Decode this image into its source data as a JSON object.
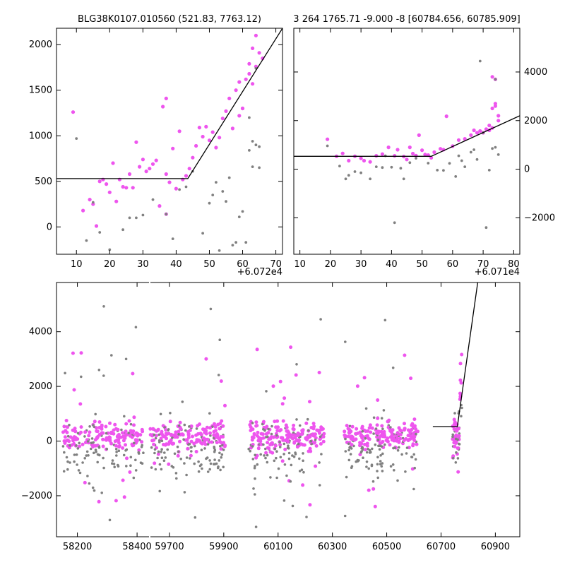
{
  "colors": {
    "magenta": "#ee55ee",
    "gray": "#808080",
    "line": "#000000"
  },
  "chart_data": [
    {
      "id": "top-left",
      "type": "scatter",
      "title": "BLG38K0107.010560 (521.83, 7763.12)",
      "offset_label": "+6.072e4",
      "xlim": [
        4,
        72
      ],
      "ylim": [
        -300,
        2180
      ],
      "xticks": [
        10,
        20,
        30,
        40,
        50,
        60,
        70
      ],
      "yticks": [
        0,
        500,
        1000,
        1500,
        2000
      ],
      "ytick_side": "left",
      "fit_line": [
        [
          4,
          530
        ],
        [
          43.5,
          530
        ],
        [
          72,
          2180
        ]
      ],
      "series": [
        {
          "name": "magenta",
          "color": "#ee55ee",
          "points": [
            [
              9,
              1260
            ],
            [
              12,
              180
            ],
            [
              14,
              300
            ],
            [
              15,
              250
            ],
            [
              16,
              10
            ],
            [
              17,
              500
            ],
            [
              18,
              520
            ],
            [
              19,
              470
            ],
            [
              20,
              380
            ],
            [
              21,
              700
            ],
            [
              22,
              280
            ],
            [
              23,
              520
            ],
            [
              24,
              440
            ],
            [
              25,
              430
            ],
            [
              26,
              580
            ],
            [
              27,
              430
            ],
            [
              28,
              930
            ],
            [
              29,
              660
            ],
            [
              30,
              740
            ],
            [
              31,
              610
            ],
            [
              32,
              640
            ],
            [
              33,
              690
            ],
            [
              34,
              730
            ],
            [
              35,
              230
            ],
            [
              36,
              1320
            ],
            [
              37,
              1410
            ],
            [
              37,
              140
            ],
            [
              37,
              580
            ],
            [
              38,
              490
            ],
            [
              39,
              860
            ],
            [
              40,
              420
            ],
            [
              41,
              1050
            ],
            [
              42,
              520
            ],
            [
              43,
              560
            ],
            [
              44,
              640
            ],
            [
              45,
              760
            ],
            [
              46,
              890
            ],
            [
              47,
              1090
            ],
            [
              48,
              990
            ],
            [
              49,
              1100
            ],
            [
              50,
              950
            ],
            [
              51,
              1040
            ],
            [
              52,
              870
            ],
            [
              53,
              980
            ],
            [
              54,
              1190
            ],
            [
              55,
              1270
            ],
            [
              56,
              1410
            ],
            [
              57,
              1080
            ],
            [
              58,
              1500
            ],
            [
              59,
              1590
            ],
            [
              60,
              1300
            ],
            [
              61,
              1620
            ],
            [
              62,
              1790
            ],
            [
              63,
              1960
            ],
            [
              64,
              2100
            ],
            [
              65,
              1910
            ],
            [
              66,
              1850
            ],
            [
              64,
              1760
            ],
            [
              63,
              1570
            ],
            [
              62,
              1680
            ],
            [
              60,
              1300
            ],
            [
              59,
              1220
            ]
          ]
        },
        {
          "name": "gray",
          "color": "#808080",
          "points": [
            [
              10,
              970
            ],
            [
              13,
              -150
            ],
            [
              15,
              270
            ],
            [
              17,
              -60
            ],
            [
              20,
              -250
            ],
            [
              24,
              -30
            ],
            [
              26,
              100
            ],
            [
              28,
              100
            ],
            [
              30,
              130
            ],
            [
              33,
              300
            ],
            [
              37,
              140
            ],
            [
              39,
              -130
            ],
            [
              41,
              410
            ],
            [
              43,
              440
            ],
            [
              45,
              610
            ],
            [
              48,
              -70
            ],
            [
              50,
              260
            ],
            [
              51,
              350
            ],
            [
              52,
              490
            ],
            [
              53,
              -260
            ],
            [
              54,
              390
            ],
            [
              55,
              280
            ],
            [
              56,
              540
            ],
            [
              57,
              -200
            ],
            [
              58,
              -170
            ],
            [
              59,
              110
            ],
            [
              60,
              170
            ],
            [
              61,
              -170
            ],
            [
              62,
              840
            ],
            [
              63,
              940
            ],
            [
              64,
              900
            ],
            [
              65,
              650
            ],
            [
              65,
              880
            ],
            [
              64,
              1740
            ],
            [
              63,
              660
            ],
            [
              62,
              1200
            ]
          ]
        }
      ]
    },
    {
      "id": "top-right",
      "type": "scatter",
      "title": "3 264 1765.71 -9.000 -8 [60784.656, 60785.909]",
      "offset_label": "+6.071e4",
      "xlim": [
        8,
        82
      ],
      "ylim": [
        -3500,
        5800
      ],
      "xticks": [
        10,
        20,
        30,
        40,
        50,
        60,
        70,
        80
      ],
      "yticks": [
        -2000,
        0,
        2000,
        4000
      ],
      "ytick_side": "right",
      "fit_line": [
        [
          8,
          530
        ],
        [
          53,
          530
        ],
        [
          82,
          2200
        ]
      ],
      "series": [
        {
          "name": "magenta",
          "color": "#ee55ee",
          "points": [
            [
              19,
              1230
            ],
            [
              22,
              530
            ],
            [
              24,
              650
            ],
            [
              26,
              350
            ],
            [
              28,
              530
            ],
            [
              30,
              450
            ],
            [
              31,
              350
            ],
            [
              33,
              300
            ],
            [
              35,
              550
            ],
            [
              37,
              620
            ],
            [
              39,
              900
            ],
            [
              41,
              550
            ],
            [
              42,
              800
            ],
            [
              44,
              520
            ],
            [
              45,
              400
            ],
            [
              46,
              900
            ],
            [
              47,
              640
            ],
            [
              48,
              560
            ],
            [
              49,
              1400
            ],
            [
              50,
              780
            ],
            [
              51,
              600
            ],
            [
              52,
              580
            ],
            [
              53,
              470
            ],
            [
              54,
              700
            ],
            [
              56,
              840
            ],
            [
              57,
              800
            ],
            [
              58,
              2180
            ],
            [
              60,
              950
            ],
            [
              62,
              1200
            ],
            [
              64,
              1250
            ],
            [
              66,
              1400
            ],
            [
              67,
              1600
            ],
            [
              68,
              1500
            ],
            [
              69,
              1570
            ],
            [
              70,
              1500
            ],
            [
              71,
              1650
            ],
            [
              72,
              1800
            ],
            [
              73,
              2500
            ],
            [
              73,
              3800
            ],
            [
              74,
              2700
            ],
            [
              74,
              3700
            ],
            [
              75,
              2200
            ],
            [
              75,
              2000
            ],
            [
              74,
              2600
            ],
            [
              73,
              1700
            ],
            [
              72,
              1600
            ]
          ]
        },
        {
          "name": "gray",
          "color": "#808080",
          "points": [
            [
              19,
              960
            ],
            [
              23,
              130
            ],
            [
              25,
              -400
            ],
            [
              26,
              -250
            ],
            [
              28,
              -100
            ],
            [
              30,
              -150
            ],
            [
              33,
              -400
            ],
            [
              35,
              100
            ],
            [
              37,
              70
            ],
            [
              38,
              550
            ],
            [
              40,
              80
            ],
            [
              41,
              -2200
            ],
            [
              43,
              40
            ],
            [
              44,
              -400
            ],
            [
              46,
              270
            ],
            [
              48,
              450
            ],
            [
              52,
              250
            ],
            [
              55,
              -40
            ],
            [
              57,
              -50
            ],
            [
              59,
              240
            ],
            [
              61,
              -300
            ],
            [
              62,
              550
            ],
            [
              63,
              350
            ],
            [
              64,
              100
            ],
            [
              66,
              700
            ],
            [
              67,
              800
            ],
            [
              68,
              400
            ],
            [
              69,
              4450
            ],
            [
              70,
              1500
            ],
            [
              71,
              -2400
            ],
            [
              72,
              -40
            ],
            [
              73,
              850
            ],
            [
              74,
              900
            ],
            [
              75,
              600
            ],
            [
              74,
              3700
            ]
          ]
        }
      ]
    },
    {
      "id": "bottom",
      "type": "scatter",
      "title": "",
      "xticks": [
        "58200",
        "58400",
        "59700",
        "59900",
        "60100",
        "60300",
        "60500",
        "60700",
        "60900"
      ],
      "yticks": [
        -2000,
        0,
        2000,
        4000
      ],
      "ylim": [
        -3500,
        5800
      ],
      "segments": [
        {
          "xlim": [
            58130,
            58440
          ]
        },
        {
          "xlim": [
            59630,
            60990
          ]
        }
      ],
      "clusters": [
        {
          "center": 58290,
          "width": 270,
          "n": 260,
          "seg": 0
        },
        {
          "center": 59770,
          "width": 270,
          "n": 260,
          "seg": 1
        },
        {
          "center": 60130,
          "width": 270,
          "n": 280,
          "seg": 1
        },
        {
          "center": 60480,
          "width": 270,
          "n": 280,
          "seg": 1
        },
        {
          "center": 60760,
          "width": 36,
          "n": 70,
          "seg": 1
        }
      ],
      "fit_line": [
        [
          60670,
          530
        ],
        [
          60760,
          530
        ],
        [
          60835,
          5800
        ]
      ]
    }
  ]
}
